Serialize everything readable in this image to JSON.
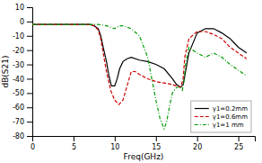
{
  "chart_data": {
    "type": "line",
    "xlabel": "Freq(GHz)",
    "ylabel": "dB(S21)",
    "xlim": [
      0,
      27
    ],
    "ylim": [
      -80,
      10
    ],
    "xticks": [
      0,
      5,
      10,
      15,
      20,
      25
    ],
    "yticks": [
      10,
      0,
      -10,
      -20,
      -30,
      -40,
      -50,
      -60,
      -70,
      -80
    ],
    "grid": false,
    "legend": "lower right",
    "series": [
      {
        "name": "γ1=0.2mm",
        "color": "#000000",
        "line_style": "solid",
        "x": [
          0,
          1,
          2,
          3,
          4,
          5,
          6,
          7,
          7.5,
          8,
          8.3,
          8.6,
          9,
          9.3,
          9.6,
          10,
          10.3,
          10.6,
          11,
          11.5,
          12,
          13,
          14,
          15,
          16,
          17,
          17.5,
          18,
          18.3,
          18.5,
          19,
          20,
          21,
          22,
          23,
          23.5,
          24,
          24.5,
          25,
          26
        ],
        "values": [
          -2,
          -2,
          -2,
          -2,
          -2,
          -2,
          -2,
          -2,
          -3,
          -5,
          -10,
          -18,
          -28,
          -38,
          -45,
          -45,
          -40,
          -33,
          -28,
          -26,
          -25,
          -27,
          -28,
          -30,
          -33,
          -40,
          -44,
          -46,
          -44,
          -38,
          -22,
          -8,
          -5,
          -5,
          -8,
          -10,
          -12,
          -15,
          -18,
          -22
        ]
      },
      {
        "name": "γ1=0.6mm",
        "color": "#cc0000",
        "line_style": "dashed",
        "x": [
          0,
          1,
          2,
          3,
          4,
          5,
          6,
          7,
          7.5,
          8,
          8.3,
          8.6,
          9,
          9.5,
          10,
          10.5,
          11,
          11.5,
          12,
          12.5,
          13,
          14,
          15,
          16,
          17,
          17.5,
          18,
          18.3,
          18.5,
          19,
          20,
          21,
          22,
          23,
          24,
          25,
          26
        ],
        "values": [
          -2,
          -2,
          -2,
          -2,
          -2,
          -2,
          -2,
          -2,
          -3,
          -6,
          -12,
          -22,
          -35,
          -48,
          -55,
          -58,
          -55,
          -45,
          -35,
          -35,
          -37,
          -40,
          -42,
          -43,
          -44,
          -45,
          -46,
          -40,
          -25,
          -12,
          -7,
          -7,
          -9,
          -12,
          -18,
          -22,
          -26
        ]
      },
      {
        "name": "γ1=1 mm",
        "color": "#009900",
        "line_style": "dashdot",
        "x": [
          0,
          1,
          2,
          3,
          4,
          5,
          6,
          7,
          8,
          9,
          9.5,
          10,
          10.3,
          10.6,
          11,
          11.5,
          12,
          13,
          14,
          15,
          15.5,
          16,
          16.3,
          16.8,
          17,
          17.5,
          18,
          18.2,
          18.4,
          18.6,
          19,
          19.5,
          20,
          21,
          22,
          23,
          24,
          25,
          26
        ],
        "values": [
          -2,
          -2,
          -2,
          -2,
          -2,
          -2,
          -2,
          -2,
          -2,
          -3,
          -4,
          -5,
          -4,
          -3,
          -3,
          -4,
          -5,
          -10,
          -25,
          -55,
          -68,
          -75,
          -70,
          -55,
          -50,
          -46,
          -46,
          -48,
          -42,
          -30,
          -18,
          -20,
          -22,
          -25,
          -22,
          -25,
          -30,
          -34,
          -38
        ]
      }
    ]
  }
}
